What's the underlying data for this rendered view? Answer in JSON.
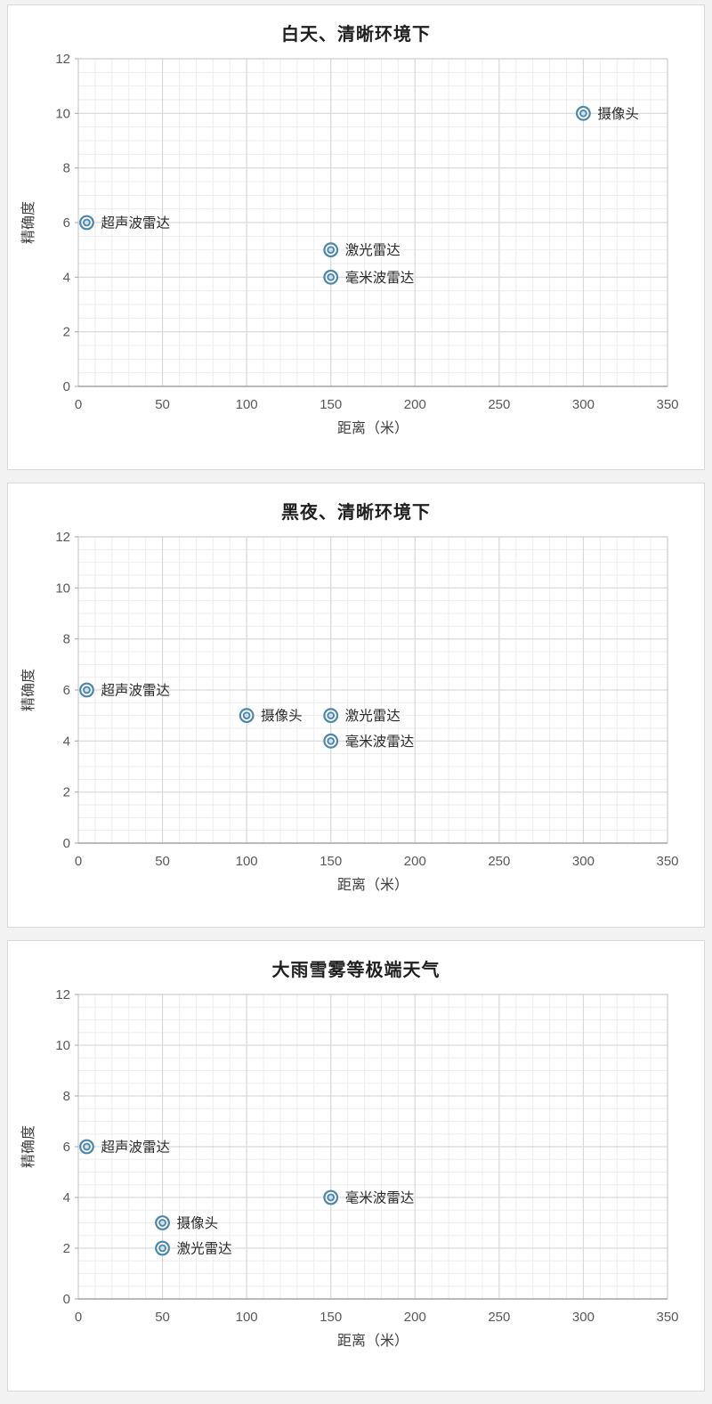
{
  "page": {
    "background": "#f2f2f2",
    "panel_background": "#ffffff",
    "panel_border": "#d9d9d9"
  },
  "colors": {
    "marker": "#4a86ad",
    "marker_center": "#cfe2ee",
    "grid_minor": "#ededed",
    "grid_major": "#d9d9d9",
    "plot_border": "#c9c9c9",
    "axis_line": "#a6a6a6",
    "tick_text": "#595959",
    "axis_title_text": "#404040",
    "point_label_text": "#2b2b2b",
    "title_text": "#1f1f1f"
  },
  "chart_data": [
    {
      "type": "scatter",
      "title": "白天、清晰环境下",
      "xlabel": "距离（米）",
      "ylabel": "精确度",
      "xlim": [
        0,
        350
      ],
      "ylim": [
        0,
        12
      ],
      "xticks": [
        0,
        50,
        100,
        150,
        200,
        250,
        300,
        350
      ],
      "yticks": [
        0,
        2,
        4,
        6,
        8,
        10,
        12
      ],
      "x_minor_step": 10,
      "y_minor_step": 0.5,
      "grid": true,
      "legend": "none",
      "points": [
        {
          "label": "摄像头",
          "x": 300,
          "y": 10
        },
        {
          "label": "超声波雷达",
          "x": 5,
          "y": 6
        },
        {
          "label": "激光雷达",
          "x": 150,
          "y": 5
        },
        {
          "label": "毫米波雷达",
          "x": 150,
          "y": 4
        }
      ]
    },
    {
      "type": "scatter",
      "title": "黑夜、清晰环境下",
      "xlabel": "距离（米）",
      "ylabel": "精确度",
      "xlim": [
        0,
        350
      ],
      "ylim": [
        0,
        12
      ],
      "xticks": [
        0,
        50,
        100,
        150,
        200,
        250,
        300,
        350
      ],
      "yticks": [
        0,
        2,
        4,
        6,
        8,
        10,
        12
      ],
      "x_minor_step": 10,
      "y_minor_step": 0.5,
      "grid": true,
      "legend": "none",
      "points": [
        {
          "label": "超声波雷达",
          "x": 5,
          "y": 6
        },
        {
          "label": "摄像头",
          "x": 100,
          "y": 5
        },
        {
          "label": "激光雷达",
          "x": 150,
          "y": 5
        },
        {
          "label": "毫米波雷达",
          "x": 150,
          "y": 4
        }
      ]
    },
    {
      "type": "scatter",
      "title": "大雨雪雾等极端天气",
      "xlabel": "距离（米）",
      "ylabel": "精确度",
      "xlim": [
        0,
        350
      ],
      "ylim": [
        0,
        12
      ],
      "xticks": [
        0,
        50,
        100,
        150,
        200,
        250,
        300,
        350
      ],
      "yticks": [
        0,
        2,
        4,
        6,
        8,
        10,
        12
      ],
      "x_minor_step": 10,
      "y_minor_step": 0.5,
      "grid": true,
      "legend": "none",
      "points": [
        {
          "label": "超声波雷达",
          "x": 5,
          "y": 6
        },
        {
          "label": "毫米波雷达",
          "x": 150,
          "y": 4
        },
        {
          "label": "摄像头",
          "x": 50,
          "y": 3
        },
        {
          "label": "激光雷达",
          "x": 50,
          "y": 2
        }
      ]
    }
  ]
}
